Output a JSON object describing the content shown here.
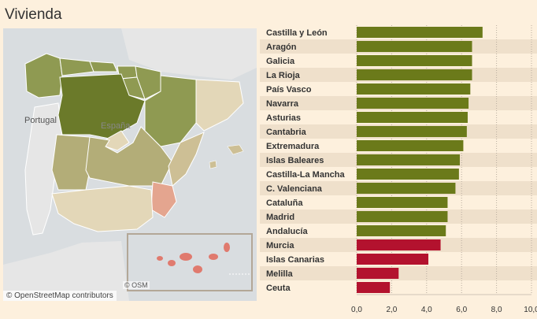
{
  "title": "Vivienda",
  "map": {
    "labels": {
      "portugal": "Portugal",
      "espana": "España",
      "osm_small": "© OSM"
    },
    "attribution": "© OpenStreetMap contributors",
    "colors": {
      "water": "#d9dde0",
      "land": "#e6e6e6",
      "dark_green": "#6b7a2a",
      "olive": "#8f9a52",
      "light_olive": "#b3ad78",
      "khaki": "#cdbf95",
      "beige": "#e3d7b8",
      "red_light": "#e4a58f",
      "red": "#e07a6e"
    }
  },
  "chart_data": {
    "type": "bar",
    "orientation": "horizontal",
    "categories": [
      "Castilla y León",
      "Aragón",
      "Galicia",
      "La Rioja",
      "País Vasco",
      "Navarra",
      "Asturias",
      "Cantabria",
      "Extremadura",
      "Islas Baleares",
      "Castilla-La Mancha",
      "C. Valenciana",
      "Cataluña",
      "Madrid",
      "Andalucía",
      "Murcia",
      "Islas Canarias",
      "Melilla",
      "Ceuta"
    ],
    "values": [
      7.2,
      6.6,
      6.6,
      6.6,
      6.5,
      6.4,
      6.35,
      6.3,
      6.1,
      5.9,
      5.85,
      5.65,
      5.2,
      5.2,
      5.1,
      4.8,
      4.1,
      2.4,
      1.9
    ],
    "bar_colors": [
      "#6b7a1a",
      "#6b7a1a",
      "#6b7a1a",
      "#6b7a1a",
      "#6b7a1a",
      "#6b7a1a",
      "#6b7a1a",
      "#6b7a1a",
      "#6b7a1a",
      "#6b7a1a",
      "#6b7a1a",
      "#6b7a1a",
      "#6b7a1a",
      "#6b7a1a",
      "#6b7a1a",
      "#b3122e",
      "#b3122e",
      "#b3122e",
      "#b3122e"
    ],
    "xticks": [
      "0,0",
      "2,0",
      "4,0",
      "6,0",
      "8,0",
      "10,0"
    ],
    "xlim": [
      0,
      10
    ],
    "grid": true
  }
}
